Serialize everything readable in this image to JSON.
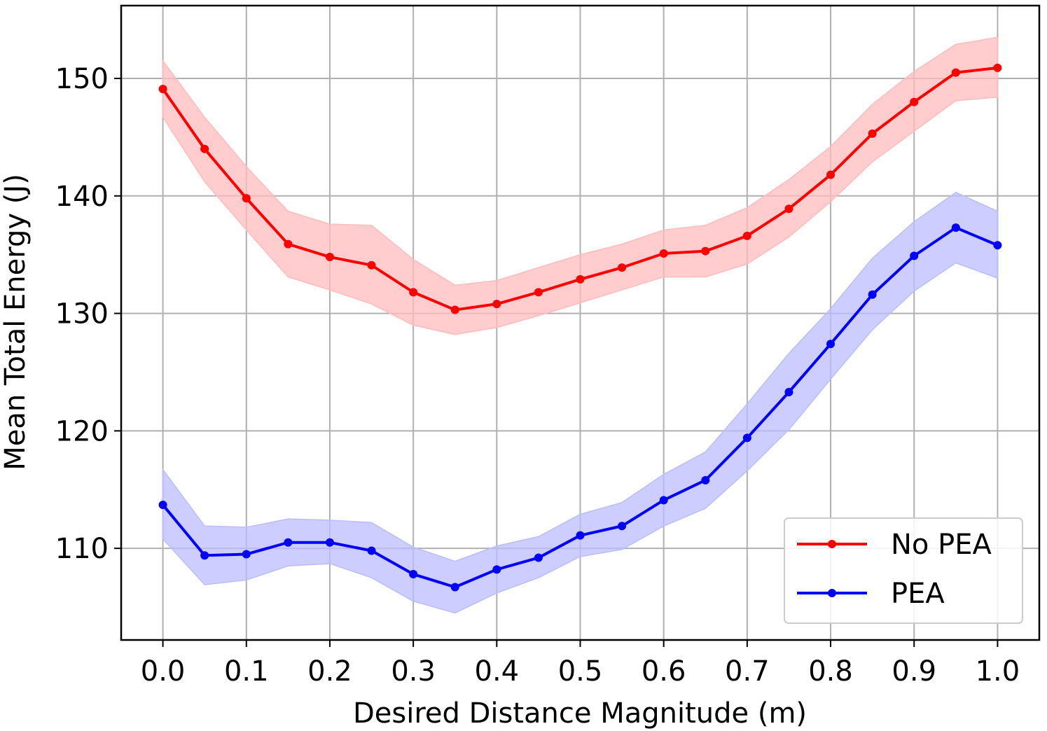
{
  "chart_data": {
    "type": "line",
    "title": "",
    "xlabel": "Desired Distance Magnitude (m)",
    "ylabel": "Mean Total Energy (J)",
    "xlim": [
      -0.05,
      1.05
    ],
    "ylim": [
      102.2,
      156.2
    ],
    "x_ticks": [
      "0.0",
      "0.1",
      "0.2",
      "0.3",
      "0.4",
      "0.5",
      "0.6",
      "0.7",
      "0.8",
      "0.9",
      "1.0"
    ],
    "y_ticks": [
      "110",
      "120",
      "130",
      "140",
      "150"
    ],
    "grid": true,
    "legend_position": "lower-right",
    "x": [
      0.0,
      0.05,
      0.1,
      0.15,
      0.2,
      0.25,
      0.3,
      0.35,
      0.4,
      0.45,
      0.5,
      0.55,
      0.6,
      0.65,
      0.7,
      0.75,
      0.8,
      0.85,
      0.9,
      0.95,
      1.0
    ],
    "series": [
      {
        "name": "No PEA",
        "color": "#ff0000",
        "band_color": "#ffbcbc",
        "values": [
          149.1,
          144.0,
          139.8,
          135.9,
          134.8,
          134.1,
          131.8,
          130.3,
          130.8,
          131.8,
          132.9,
          133.9,
          135.1,
          135.3,
          136.6,
          138.9,
          141.8,
          145.3,
          148.0,
          150.5,
          150.9
        ],
        "upper": [
          151.5,
          146.7,
          142.5,
          138.7,
          137.6,
          137.5,
          134.6,
          132.4,
          132.8,
          133.9,
          135.0,
          135.9,
          137.1,
          137.5,
          139.0,
          141.4,
          144.2,
          147.8,
          150.6,
          152.9,
          153.5
        ],
        "lower": [
          146.7,
          141.2,
          137.1,
          133.1,
          132.0,
          130.8,
          129.0,
          128.2,
          128.8,
          129.8,
          130.9,
          132.0,
          133.1,
          133.1,
          134.2,
          136.5,
          139.5,
          142.9,
          145.5,
          148.1,
          148.4
        ]
      },
      {
        "name": "PEA",
        "color": "#0000ff",
        "band_color": "#bcbcff",
        "values": [
          113.7,
          109.4,
          109.5,
          110.5,
          110.5,
          109.8,
          107.8,
          106.7,
          108.2,
          109.2,
          111.1,
          111.9,
          114.1,
          115.8,
          119.4,
          123.3,
          127.4,
          131.6,
          134.9,
          137.3,
          135.8
        ],
        "upper": [
          116.7,
          111.9,
          111.8,
          112.5,
          112.4,
          112.2,
          110.1,
          108.9,
          110.2,
          111.0,
          112.9,
          113.9,
          116.3,
          118.2,
          122.3,
          126.6,
          130.4,
          134.7,
          137.8,
          140.3,
          138.7
        ],
        "lower": [
          110.8,
          106.9,
          107.3,
          108.5,
          108.7,
          107.5,
          105.5,
          104.5,
          106.2,
          107.5,
          109.3,
          109.9,
          111.9,
          113.4,
          116.6,
          120.1,
          124.4,
          128.6,
          131.9,
          134.3,
          133.0
        ]
      }
    ]
  }
}
